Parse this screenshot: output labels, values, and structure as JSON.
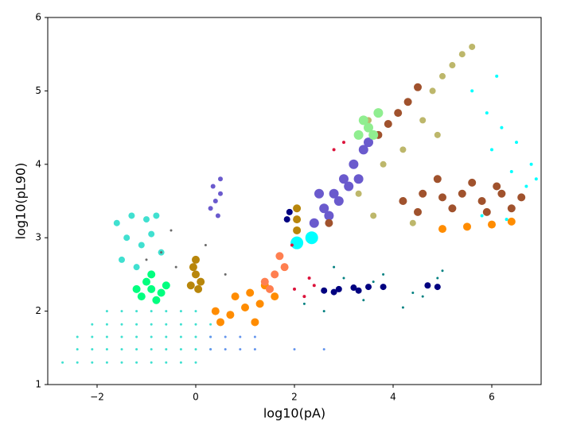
{
  "chart_data": {
    "type": "scatter",
    "x_label": "log10(pA)",
    "y_label": "log10(pL90)",
    "xlim": [
      -3,
      7
    ],
    "ylim": [
      1,
      6
    ],
    "xticks": [
      {
        "value": -2,
        "label": "−2"
      },
      0,
      2,
      4,
      6
    ],
    "yticks": [
      1,
      2,
      3,
      4,
      5,
      6
    ],
    "series": [
      {
        "color": "#40e0d0",
        "marker_size": 1.5,
        "x": [
          -2.7,
          -2.4,
          -2.1,
          -1.8,
          -1.5,
          -1.2,
          -0.9,
          -0.6,
          -0.3,
          0.0,
          -2.4,
          -2.1,
          -1.8,
          -1.5,
          -1.2,
          -0.9,
          -0.6,
          -0.3,
          0.0,
          0.3,
          -2.4,
          -2.1,
          -1.8,
          -1.5,
          -1.2,
          -0.9,
          -0.6,
          -0.3,
          0.0,
          0.3,
          -2.1,
          -1.8,
          -1.5,
          -1.2,
          -0.9,
          -0.6,
          -0.3,
          0.0,
          0.3,
          -1.8,
          -1.5,
          -1.2,
          -0.9,
          -0.6,
          -0.3,
          0.0
        ],
        "y": [
          1.3,
          1.3,
          1.3,
          1.3,
          1.3,
          1.3,
          1.3,
          1.3,
          1.3,
          1.3,
          1.48,
          1.48,
          1.48,
          1.48,
          1.48,
          1.48,
          1.48,
          1.48,
          1.48,
          1.48,
          1.65,
          1.65,
          1.65,
          1.65,
          1.65,
          1.65,
          1.65,
          1.65,
          1.65,
          1.65,
          1.82,
          1.82,
          1.82,
          1.82,
          1.82,
          1.82,
          1.82,
          1.82,
          1.82,
          2.0,
          2.0,
          2.0,
          2.0,
          2.0,
          2.0,
          2.0
        ]
      },
      {
        "color": "#40e0d0",
        "marker_size": 4,
        "x": [
          -1.6,
          -1.3,
          -1.0,
          -0.8,
          -1.4,
          -1.1,
          -0.9,
          -1.5,
          -1.2,
          -0.7
        ],
        "y": [
          3.2,
          3.3,
          3.25,
          3.3,
          3.0,
          2.9,
          3.05,
          2.7,
          2.6,
          2.8
        ]
      },
      {
        "color": "#6495ed",
        "marker_size": 1.5,
        "x": [
          0.3,
          0.6,
          0.9,
          1.2,
          0.3,
          0.6,
          0.9,
          1.2,
          2.0,
          2.6
        ],
        "y": [
          1.48,
          1.48,
          1.48,
          1.48,
          1.65,
          1.65,
          1.65,
          1.65,
          1.48,
          1.48
        ]
      },
      {
        "color": "#00ff7f",
        "marker_size": 5,
        "x": [
          -1.1,
          -0.9,
          -0.7,
          -1.0,
          -0.8,
          -1.2,
          -0.6,
          -0.9
        ],
        "y": [
          2.2,
          2.3,
          2.25,
          2.4,
          2.15,
          2.3,
          2.35,
          2.5
        ]
      },
      {
        "color": "#b8860b",
        "marker_size": 5,
        "x": [
          -0.1,
          0.0,
          0.1,
          -0.05,
          0.05,
          0.0,
          2.05,
          2.05,
          2.05
        ],
        "y": [
          2.35,
          2.5,
          2.4,
          2.6,
          2.3,
          2.7,
          3.1,
          3.25,
          3.4
        ]
      },
      {
        "color": "#6a5acd",
        "marker_size": 6,
        "x": [
          2.4,
          2.6,
          2.8,
          3.0,
          3.2,
          3.4,
          2.7,
          2.9,
          3.1,
          2.5,
          3.3,
          3.5
        ],
        "y": [
          3.2,
          3.4,
          3.6,
          3.8,
          4.0,
          4.2,
          3.3,
          3.5,
          3.7,
          3.6,
          3.8,
          4.3
        ]
      },
      {
        "color": "#6a5acd",
        "marker_size": 3,
        "x": [
          0.3,
          0.4,
          0.5,
          0.35,
          0.45,
          0.5
        ],
        "y": [
          3.4,
          3.5,
          3.6,
          3.7,
          3.3,
          3.8
        ]
      },
      {
        "color": "#ff8c00",
        "marker_size": 5,
        "x": [
          0.4,
          0.7,
          1.0,
          1.3,
          1.6,
          0.8,
          1.1,
          1.4,
          0.5,
          1.2,
          5.0,
          5.5,
          6.0,
          6.4
        ],
        "y": [
          2.0,
          1.95,
          2.05,
          2.1,
          2.2,
          2.2,
          2.25,
          2.35,
          1.85,
          1.85,
          3.12,
          3.15,
          3.18,
          3.22
        ]
      },
      {
        "color": "#ff7f50",
        "marker_size": 5,
        "x": [
          1.4,
          1.6,
          1.8,
          1.7,
          1.5
        ],
        "y": [
          2.4,
          2.5,
          2.6,
          2.75,
          2.3
        ]
      },
      {
        "color": "#000080",
        "marker_size": 4,
        "x": [
          2.6,
          2.9,
          3.2,
          3.5,
          3.8,
          2.8,
          3.3,
          1.9,
          1.85,
          4.7,
          4.9
        ],
        "y": [
          2.28,
          2.3,
          2.32,
          2.33,
          2.33,
          2.26,
          2.28,
          3.35,
          3.25,
          2.35,
          2.33
        ]
      },
      {
        "color": "#008080",
        "marker_size": 1.5,
        "x": [
          2.2,
          2.6,
          3.0,
          3.4,
          3.8,
          4.2,
          4.6,
          5.0,
          2.8,
          3.6,
          4.4,
          4.9
        ],
        "y": [
          2.1,
          2.0,
          2.45,
          2.15,
          2.5,
          2.05,
          2.2,
          2.55,
          2.6,
          2.4,
          2.25,
          2.45
        ]
      },
      {
        "color": "#a0522d",
        "marker_size": 5,
        "x": [
          4.2,
          4.6,
          5.0,
          5.4,
          5.8,
          6.2,
          6.6,
          4.5,
          5.2,
          5.9,
          6.4,
          4.9,
          5.6,
          6.1,
          3.7,
          3.9,
          4.1,
          4.3,
          4.5,
          2.7
        ],
        "y": [
          3.5,
          3.6,
          3.55,
          3.6,
          3.5,
          3.6,
          3.55,
          3.35,
          3.4,
          3.35,
          3.4,
          3.8,
          3.75,
          3.7,
          4.4,
          4.55,
          4.7,
          4.85,
          5.05,
          3.2
        ]
      },
      {
        "color": "#bdb76b",
        "marker_size": 4,
        "x": [
          4.8,
          5.0,
          5.2,
          5.4,
          5.6,
          3.3,
          3.8,
          4.2,
          4.6,
          3.6,
          4.4,
          4.9,
          3.5
        ],
        "y": [
          5.0,
          5.2,
          5.35,
          5.5,
          5.6,
          3.6,
          4.0,
          4.2,
          4.6,
          3.3,
          3.2,
          4.4,
          4.6
        ]
      },
      {
        "color": "#90ee90",
        "marker_size": 6,
        "x": [
          3.3,
          3.5,
          3.7,
          3.4,
          3.6
        ],
        "y": [
          4.4,
          4.5,
          4.7,
          4.6,
          4.4
        ]
      },
      {
        "color": "#00ffff",
        "marker_size": 2,
        "x": [
          5.6,
          5.9,
          6.2,
          6.5,
          6.8,
          6.0,
          6.4,
          6.7,
          5.8,
          6.3,
          6.9,
          6.1
        ],
        "y": [
          5.0,
          4.7,
          4.5,
          4.3,
          4.0,
          4.2,
          3.9,
          3.7,
          3.3,
          3.25,
          3.8,
          5.2
        ]
      },
      {
        "color": "#00ffff",
        "marker_size": 8,
        "x": [
          2.05,
          2.35
        ],
        "y": [
          2.93,
          3.0
        ]
      },
      {
        "color": "#dc143c",
        "marker_size": 2,
        "x": [
          2.0,
          2.2,
          2.4,
          1.95,
          2.8,
          3.0,
          2.3
        ],
        "y": [
          2.3,
          2.2,
          2.35,
          2.9,
          4.2,
          4.3,
          2.45
        ]
      },
      {
        "color": "#696969",
        "marker_size": 1.5,
        "x": [
          -1.0,
          -0.7,
          -0.4,
          0.2,
          0.6,
          -0.5
        ],
        "y": [
          2.7,
          2.8,
          2.6,
          2.9,
          2.5,
          3.1
        ]
      }
    ]
  }
}
